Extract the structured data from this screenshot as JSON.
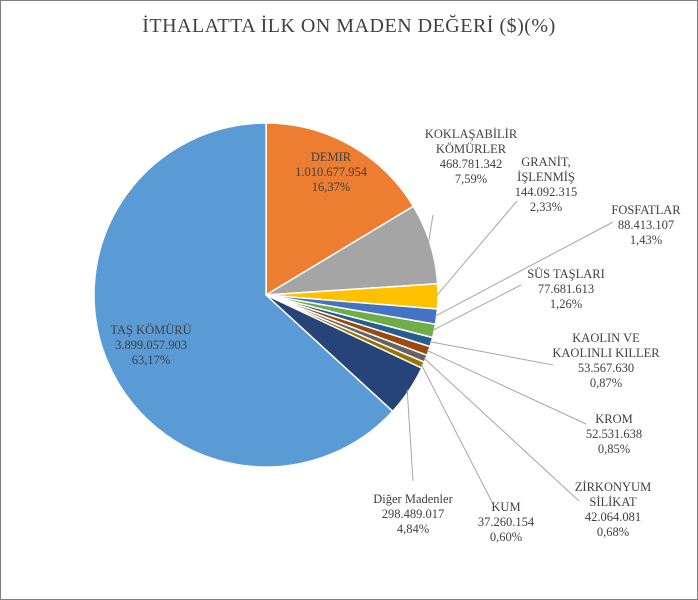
{
  "chart_data": {
    "type": "pie",
    "title": "İTHALATTA İLK ON MADEN DEĞERİ ($)(%)",
    "slices": [
      {
        "name": "DEMİR",
        "label_lines": [
          "DEMIR"
        ],
        "value_text": "1.010.677.954",
        "percent_text": "16,37%",
        "value": 1010677954,
        "percent": 16.37,
        "color": "#ed7d31"
      },
      {
        "name": "KOKLAŞABİLİR KÖMÜRLER",
        "label_lines": [
          "KOKLAŞABİLİR",
          "KÖMÜRLER"
        ],
        "value_text": "468.781.342",
        "percent_text": "7,59%",
        "value": 468781342,
        "percent": 7.59,
        "color": "#a5a5a5"
      },
      {
        "name": "GRANİT, İŞLENMİŞ",
        "label_lines": [
          "GRANİT,",
          "İŞLENMİŞ"
        ],
        "value_text": "144.092.315",
        "percent_text": "2,33%",
        "value": 144092315,
        "percent": 2.33,
        "color": "#ffc000"
      },
      {
        "name": "FOSFATLAR",
        "label_lines": [
          "FOSFATLAR"
        ],
        "value_text": "88.413.107",
        "percent_text": "1,43%",
        "value": 88413107,
        "percent": 1.43,
        "color": "#4472c4"
      },
      {
        "name": "SÜS TAŞLARI",
        "label_lines": [
          "SÜS TAŞLARI"
        ],
        "value_text": "77.681.613",
        "percent_text": "1,26%",
        "value": 77681613,
        "percent": 1.26,
        "color": "#70ad47"
      },
      {
        "name": "KAOLİN VE KAOLİNLİ KİLLER",
        "label_lines": [
          "KAOLIN VE",
          "KAOLINLI KILLER"
        ],
        "value_text": "53.567.630",
        "percent_text": "0,87%",
        "value": 53567630,
        "percent": 0.87,
        "color": "#255e91"
      },
      {
        "name": "KROM",
        "label_lines": [
          "KROM"
        ],
        "value_text": "52.531.638",
        "percent_text": "0,85%",
        "value": 52531638,
        "percent": 0.85,
        "color": "#9e480e"
      },
      {
        "name": "ZİRKONYUM SİLİKAT",
        "label_lines": [
          "ZİRKONYUM",
          "SİLİKAT"
        ],
        "value_text": "42.064.081",
        "percent_text": "0,68%",
        "value": 42064081,
        "percent": 0.68,
        "color": "#636363"
      },
      {
        "name": "KUM",
        "label_lines": [
          "KUM"
        ],
        "value_text": "37.260.154",
        "percent_text": "0,60%",
        "value": 37260154,
        "percent": 0.6,
        "color": "#997300"
      },
      {
        "name": "Diğer Madenler",
        "label_lines": [
          "Diğer Madenler"
        ],
        "value_text": "298.489.017",
        "percent_text": "4,84%",
        "value": 298489017,
        "percent": 4.84,
        "color": "#264478"
      },
      {
        "name": "TAŞ KÖMÜRÜ",
        "label_lines": [
          "TAŞ KÖMÜRÜ"
        ],
        "value_text": "3.899.057.903",
        "percent_text": "63,17%",
        "value": 3899057903,
        "percent": 63.17,
        "color": "#5b9bd5"
      }
    ],
    "legend": "none",
    "data_labels": "outside with leader lines (large slices inside)"
  }
}
